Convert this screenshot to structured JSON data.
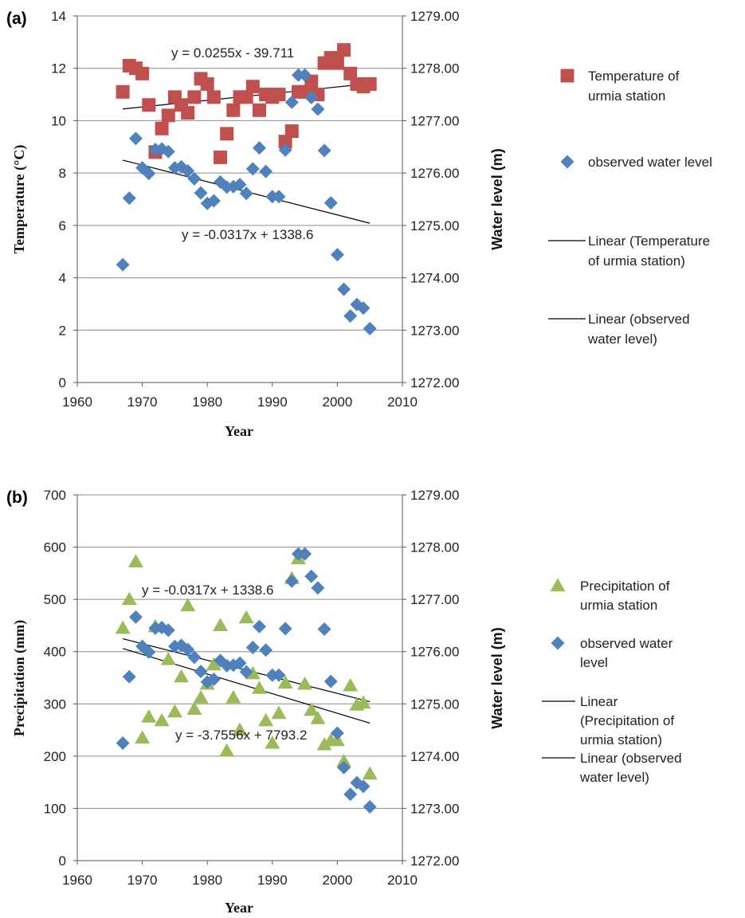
{
  "chart_data": [
    {
      "type": "scatter",
      "panel_label": "(a)",
      "xlabel": "Year",
      "ylabel": "Temperature (°C)",
      "y2label": "Water level (m)",
      "xlim": [
        1960,
        2010
      ],
      "ylim": [
        0,
        14
      ],
      "y2lim": [
        1272,
        1279
      ],
      "x_ticks": [
        "1960",
        "1970",
        "1980",
        "1990",
        "2000",
        "2010"
      ],
      "y_ticks": [
        "0",
        "2",
        "4",
        "6",
        "8",
        "10",
        "12",
        "14"
      ],
      "y2_ticks": [
        "1272.00",
        "1273.00",
        "1274.00",
        "1275.00",
        "1276.00",
        "1277.00",
        "1278.00",
        "1279.00"
      ],
      "grid": "horizontal",
      "legend_position": "right",
      "series": [
        {
          "name": "Temperature of urmia station",
          "axis": "left",
          "marker": "square",
          "color": "#C0504D",
          "x": [
            1967,
            1968,
            1969,
            1970,
            1971,
            1972,
            1973,
            1974,
            1975,
            1976,
            1977,
            1978,
            1979,
            1980,
            1981,
            1982,
            1983,
            1984,
            1985,
            1986,
            1987,
            1988,
            1989,
            1990,
            1991,
            1992,
            1993,
            1994,
            1995,
            1996,
            1997,
            1998,
            1999,
            2000,
            2001,
            2002,
            2003,
            2004,
            2005
          ],
          "y": [
            11.1,
            12.1,
            12.0,
            11.8,
            10.6,
            8.8,
            9.7,
            10.2,
            10.9,
            10.6,
            10.3,
            10.9,
            11.6,
            11.4,
            10.9,
            8.6,
            9.5,
            10.4,
            10.9,
            10.9,
            11.3,
            10.4,
            11.0,
            10.9,
            11.0,
            9.2,
            9.6,
            11.1,
            11.1,
            11.5,
            11.0,
            12.2,
            12.4,
            12.2,
            12.7,
            11.8,
            11.4,
            11.3,
            11.4
          ],
          "trendline": {
            "name": "Linear (Temperature of  urmia station)",
            "slope": 0.0255,
            "intercept": -39.711,
            "x_range": [
              1967,
              2005
            ]
          },
          "equation_label": "y = 0.0255x - 39.711"
        },
        {
          "name": "observed water level",
          "axis": "right",
          "marker": "diamond",
          "color": "#4F81BD",
          "x": [
            1967,
            1968,
            1969,
            1970,
            1971,
            1972,
            1973,
            1974,
            1975,
            1976,
            1977,
            1978,
            1979,
            1980,
            1981,
            1982,
            1983,
            1984,
            1985,
            1986,
            1987,
            1988,
            1989,
            1990,
            1991,
            1992,
            1993,
            1994,
            1995,
            1996,
            1997,
            1998,
            1999,
            2000,
            2001,
            2002,
            2003,
            2004,
            2005
          ],
          "y": [
            1274.25,
            1275.52,
            1276.66,
            1276.1,
            1275.99,
            1276.45,
            1276.46,
            1276.41,
            1276.1,
            1276.12,
            1276.04,
            1275.89,
            1275.62,
            1275.42,
            1275.47,
            1275.83,
            1275.73,
            1275.74,
            1275.78,
            1275.61,
            1276.08,
            1276.48,
            1276.03,
            1275.55,
            1275.55,
            1276.44,
            1277.35,
            1277.87,
            1277.87,
            1277.44,
            1277.22,
            1276.43,
            1275.43,
            1274.44,
            1273.78,
            1273.27,
            1273.49,
            1273.42,
            1273.03
          ],
          "trendline": {
            "name": "Linear (observed water level)",
            "slope": -0.0317,
            "intercept": 1338.6,
            "x_range": [
              1967,
              2005
            ]
          },
          "equation_label": "y = -0.0317x + 1338.6"
        }
      ]
    },
    {
      "type": "scatter",
      "panel_label": "(b)",
      "xlabel": "Year",
      "ylabel": "Precipitation (mm)",
      "y2label": "Water level (m)",
      "xlim": [
        1960,
        2010
      ],
      "ylim": [
        0,
        700
      ],
      "y2lim": [
        1272,
        1279
      ],
      "x_ticks": [
        "1960",
        "1970",
        "1980",
        "1990",
        "2000",
        "2010"
      ],
      "y_ticks": [
        "0",
        "100",
        "200",
        "300",
        "400",
        "500",
        "600",
        "700"
      ],
      "y2_ticks": [
        "1272.00",
        "1273.00",
        "1274.00",
        "1275.00",
        "1276.00",
        "1277.00",
        "1278.00",
        "1279.00"
      ],
      "grid": "horizontal",
      "legend_position": "right",
      "series": [
        {
          "name": "Precipitation of urmia station",
          "axis": "left",
          "marker": "triangle",
          "color": "#9BBB59",
          "x": [
            1967,
            1968,
            1969,
            1970,
            1971,
            1972,
            1973,
            1974,
            1975,
            1976,
            1977,
            1978,
            1979,
            1980,
            1981,
            1982,
            1983,
            1984,
            1985,
            1986,
            1987,
            1988,
            1989,
            1990,
            1991,
            1992,
            1993,
            1994,
            1995,
            1996,
            1997,
            1998,
            1999,
            2000,
            2001,
            2002,
            2003,
            2004,
            2005
          ],
          "y": [
            445,
            500,
            572,
            235,
            275,
            448,
            268,
            385,
            285,
            352,
            488,
            290,
            312,
            338,
            375,
            450,
            210,
            312,
            250,
            465,
            358,
            330,
            268,
            225,
            282,
            340,
            540,
            578,
            338,
            288,
            272,
            222,
            230,
            230,
            190,
            335,
            298,
            302,
            166
          ],
          "trendline": {
            "name": "Linear (Precipitation of urmia station)",
            "slope": -3.7556,
            "intercept": 7793.2,
            "x_range": [
              1967,
              2005
            ]
          },
          "equation_label": "y = -3.7556x + 7793.2"
        },
        {
          "name": "observed water level",
          "axis": "right",
          "marker": "diamond",
          "color": "#4F81BD",
          "x": [
            1967,
            1968,
            1969,
            1970,
            1971,
            1972,
            1973,
            1974,
            1975,
            1976,
            1977,
            1978,
            1979,
            1980,
            1981,
            1982,
            1983,
            1984,
            1985,
            1986,
            1987,
            1988,
            1989,
            1990,
            1991,
            1992,
            1993,
            1994,
            1995,
            1996,
            1997,
            1998,
            1999,
            2000,
            2001,
            2002,
            2003,
            2004,
            2005
          ],
          "y": [
            1274.25,
            1275.52,
            1276.66,
            1276.1,
            1275.99,
            1276.45,
            1276.46,
            1276.41,
            1276.1,
            1276.12,
            1276.04,
            1275.89,
            1275.62,
            1275.42,
            1275.47,
            1275.83,
            1275.73,
            1275.74,
            1275.78,
            1275.61,
            1276.08,
            1276.48,
            1276.03,
            1275.55,
            1275.55,
            1276.44,
            1277.35,
            1277.87,
            1277.87,
            1277.44,
            1277.22,
            1276.43,
            1275.43,
            1274.44,
            1273.78,
            1273.27,
            1273.49,
            1273.42,
            1273.03
          ],
          "trendline": {
            "name": "Linear (observed water level)",
            "slope": -0.0317,
            "intercept": 1338.6,
            "x_range": [
              1967,
              2005
            ]
          },
          "equation_label": "y = -0.0317x + 1338.6"
        }
      ]
    }
  ],
  "legends": [
    [
      {
        "label_lines": [
          "Temperature of",
          "urmia station"
        ],
        "marker": "square",
        "color": "#C0504D"
      },
      {
        "label_lines": [
          "observed water level"
        ],
        "marker": "diamond",
        "color": "#4F81BD"
      },
      {
        "label_lines": [
          "Linear (Temperature",
          "of  urmia station)"
        ],
        "marker": "line",
        "color": "#000000"
      },
      {
        "label_lines": [
          "Linear (observed",
          "water level)"
        ],
        "marker": "line",
        "color": "#000000"
      }
    ],
    [
      {
        "label_lines": [
          "Precipitation of",
          "urmia station"
        ],
        "marker": "triangle",
        "color": "#9BBB59"
      },
      {
        "label_lines": [
          "observed water",
          "level"
        ],
        "marker": "diamond",
        "color": "#4F81BD"
      },
      {
        "label_lines": [
          "Linear",
          "(Precipitation of",
          "urmia station)"
        ],
        "marker": "line",
        "color": "#000000"
      },
      {
        "label_lines": [
          "Linear (observed",
          "water level)"
        ],
        "marker": "line",
        "color": "#000000"
      }
    ]
  ]
}
